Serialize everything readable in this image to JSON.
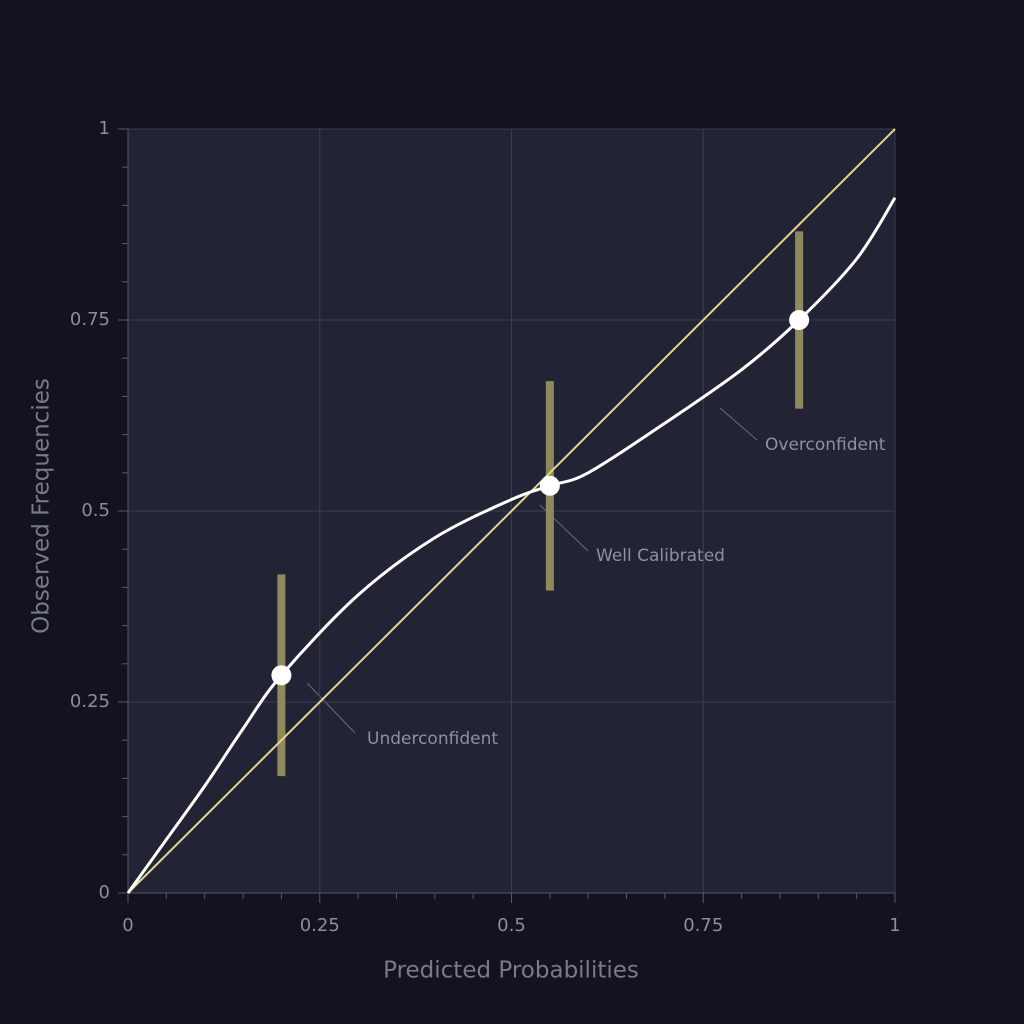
{
  "chart_data": {
    "type": "calibration",
    "xlabel": "Predicted Probabilities",
    "ylabel": "Observed Frequencies",
    "xlim": [
      0,
      1
    ],
    "ylim": [
      0,
      1
    ],
    "xticks": [
      0,
      0.25,
      0.5,
      0.75,
      1
    ],
    "yticks": [
      0,
      0.25,
      0.5,
      0.75,
      1
    ],
    "xminorticks": [
      0.05,
      0.1,
      0.15,
      0.2,
      0.3,
      0.35,
      0.4,
      0.45,
      0.55,
      0.6,
      0.65,
      0.7,
      0.8,
      0.85,
      0.9,
      0.95
    ],
    "yminorticks": [
      0.05,
      0.1,
      0.15,
      0.2,
      0.3,
      0.35,
      0.4,
      0.45,
      0.55,
      0.6,
      0.65,
      0.7,
      0.8,
      0.85,
      0.9,
      0.95
    ],
    "grid": true,
    "reference": {
      "x": [
        0,
        1
      ],
      "values": [
        0,
        1
      ],
      "color": "#e6d78c"
    },
    "curve": {
      "color": "#ffffff",
      "x": [
        0,
        0.05,
        0.1,
        0.15,
        0.2,
        0.3,
        0.4,
        0.5,
        0.55,
        0.6,
        0.7,
        0.8,
        0.875,
        0.95,
        1
      ],
      "values": [
        0,
        0.07,
        0.14,
        0.215,
        0.285,
        0.39,
        0.465,
        0.515,
        0.533,
        0.55,
        0.615,
        0.685,
        0.75,
        0.83,
        0.91
      ]
    },
    "points": {
      "color": "#ffffff",
      "errorcolor": "#8f8a5c",
      "x": [
        0.2,
        0.55,
        0.875
      ],
      "values": [
        0.285,
        0.533,
        0.75
      ],
      "errors": [
        0.132,
        0.137,
        0.116
      ]
    },
    "annotations": [
      "Underconfident",
      "Well Calibrated",
      "Overconfident"
    ]
  }
}
